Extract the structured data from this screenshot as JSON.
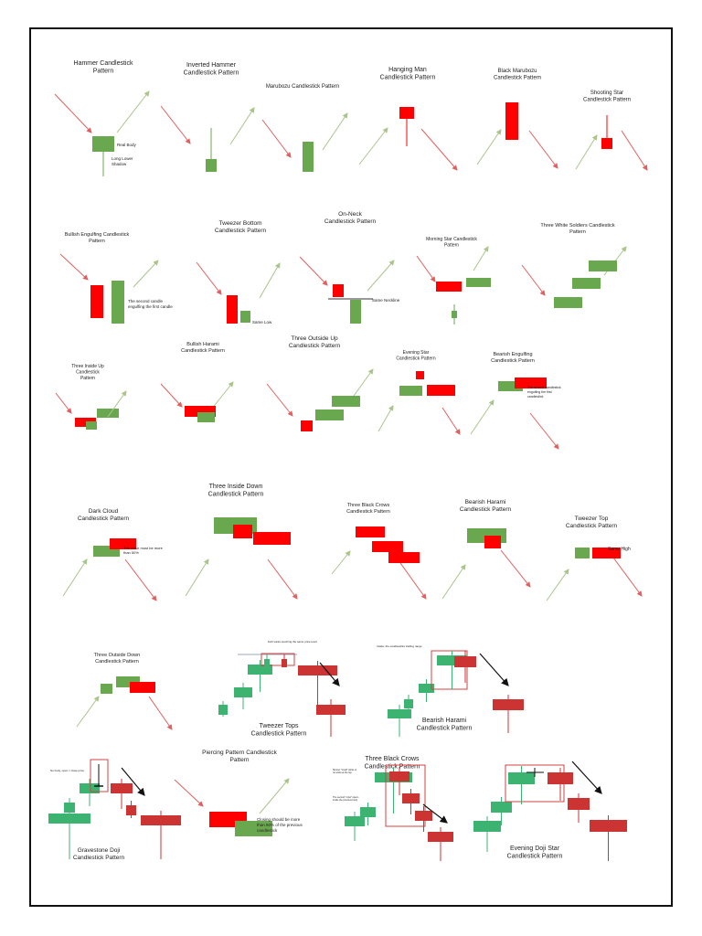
{
  "colors": {
    "bull": "#6aa84f",
    "bear": "#ff0000",
    "bull2": "#3cb371",
    "bear2": "#cc3333",
    "arrow_up": "#a9c58a",
    "arrow_down": "#e06060"
  },
  "panels": [
    {
      "id": "hammer",
      "title": [
        "Hammer Candlestick",
        "Pattern"
      ],
      "notes": [
        "Real Body",
        "Long Lower",
        "Shadow"
      ]
    },
    {
      "id": "inverted-hammer",
      "title": [
        "Inverted Hammer",
        "Candlestick Pattern"
      ]
    },
    {
      "id": "marubozu",
      "title": [
        "Marubozu Candlestick Pattern"
      ]
    },
    {
      "id": "hanging-man",
      "title": [
        "Hanging Man",
        "Candlestick Pattern"
      ]
    },
    {
      "id": "black-marubozu",
      "title": [
        "Black Marubozu",
        "Candlestick Pattern"
      ]
    },
    {
      "id": "shooting-star",
      "title": [
        "Shooting Star",
        "Candlestick Pattern"
      ]
    },
    {
      "id": "bullish-engulfing",
      "title": [
        "Bullish Engulfing Candlestick",
        "Pattern"
      ],
      "notes": [
        "The second candle",
        "engulfing the first candle"
      ]
    },
    {
      "id": "tweezer-bottom",
      "title": [
        "Tweezer Bottom",
        "Candlestick Pattern"
      ],
      "notes": [
        "Same Low"
      ]
    },
    {
      "id": "on-neck",
      "title": [
        "On-Neck",
        "Candlestick Pattern"
      ],
      "notes": [
        "Same Neckline"
      ]
    },
    {
      "id": "morning-star",
      "title": [
        "Morning Star Candlestick",
        "Pattern"
      ]
    },
    {
      "id": "three-white-soldiers",
      "title": [
        "Three White Soldiers Candlestick",
        "Pattern"
      ]
    },
    {
      "id": "three-inside-up",
      "title": [
        "Three Inside Up",
        "Candlestick",
        "Pattern"
      ]
    },
    {
      "id": "bullish-harami",
      "title": [
        "Bullish Harami",
        "Candlestick Pattern"
      ]
    },
    {
      "id": "three-outside-up",
      "title": [
        "Three Outside Up",
        "Candlestick Pattern"
      ]
    },
    {
      "id": "evening-star",
      "title": [
        "Evening Star",
        "Candlestick Pattern"
      ]
    },
    {
      "id": "bearish-engulfing",
      "title": [
        "Bearish Engulfing",
        "Candlestick Pattern"
      ],
      "notes": [
        "The second candlestick",
        "engulfing the first",
        "candlestick"
      ]
    },
    {
      "id": "dark-cloud",
      "title": [
        "Dark Cloud",
        "Candlestick Pattern"
      ],
      "notes": [
        "The close must be more",
        "than 50%"
      ]
    },
    {
      "id": "three-inside-down",
      "title": [
        "Three Inside Down",
        "Candlestick Pattern"
      ]
    },
    {
      "id": "three-black-crows",
      "title": [
        "Three Black Crows",
        "Candlestick Pattern"
      ]
    },
    {
      "id": "bearish-harami",
      "title": [
        "Bearish Harami",
        "Candlestick Pattern"
      ]
    },
    {
      "id": "tweezer-top",
      "title": [
        "Tweezer Top",
        "Candlestick Pattern"
      ],
      "notes": [
        "Same High"
      ]
    },
    {
      "id": "three-outside-down",
      "title": [
        "Three Outside Down",
        "Candlestick Pattern"
      ]
    },
    {
      "id": "tweezer-tops",
      "title": [
        "Tweezer Tops",
        "Candlestick Pattern"
      ],
      "notes": [
        "both wicks touching the same price level"
      ]
    },
    {
      "id": "bearish-harami-2",
      "title": [
        "Bearish Harami",
        "Candlestick Pattern"
      ],
      "notes": [
        "Inside: the candlesticks trading range"
      ]
    },
    {
      "id": "gravestone-doji",
      "title": [
        "Gravestone Doji",
        "Candlestick Pattern"
      ],
      "notes": [
        "No body, open = close price"
      ]
    },
    {
      "id": "piercing-pattern",
      "title": [
        "Piercing Pattern Candlestick",
        "Pattern"
      ],
      "notes": [
        "Closing should be more",
        "than 50% of the previous",
        "candlestick"
      ]
    },
    {
      "id": "three-black-crows-2",
      "title": [
        "Three Black Crows",
        "Candlestick Pattern"
      ],
      "notes": [
        "Shorter \"small\" wicks or",
        "no wicks at the top",
        "The second \"crow\" opens",
        "inside the previous body"
      ]
    },
    {
      "id": "evening-doji-star",
      "title": [
        "Evening Doji Star",
        "Candlestick Pattern"
      ]
    }
  ]
}
